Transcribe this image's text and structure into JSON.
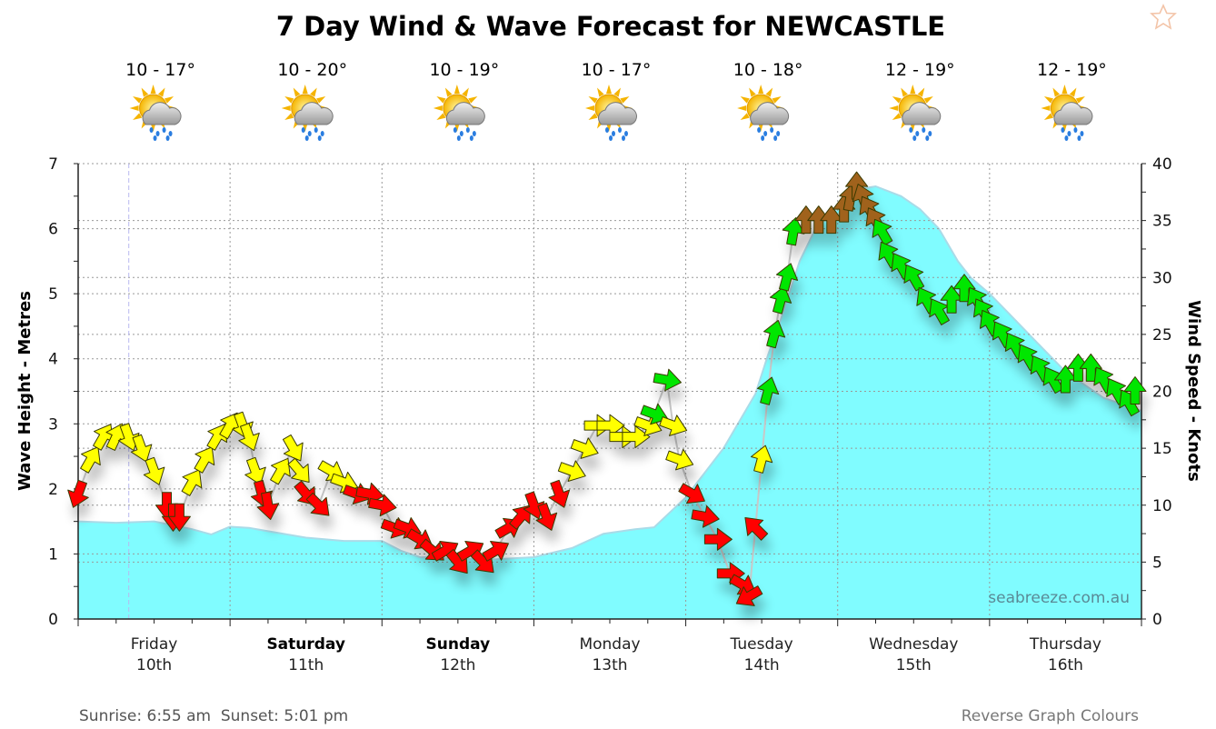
{
  "title": "7 Day Wind & Wave Forecast for NEWCASTLE",
  "days": [
    {
      "name": "Friday",
      "date": "10th",
      "temp": "10 - 17°",
      "bold": false,
      "icon": "sun-cloud-rain-icon"
    },
    {
      "name": "Saturday",
      "date": "11th",
      "temp": "10 - 20°",
      "bold": true,
      "icon": "sun-cloud-rain-icon"
    },
    {
      "name": "Sunday",
      "date": "12th",
      "temp": "10 - 19°",
      "bold": true,
      "icon": "sun-cloud-rain-icon"
    },
    {
      "name": "Monday",
      "date": "13th",
      "temp": "10 - 17°",
      "bold": false,
      "icon": "cloud-rain-icon"
    },
    {
      "name": "Tuesday",
      "date": "14th",
      "temp": "10 - 18°",
      "bold": false,
      "icon": "sun-cloud-rain-icon"
    },
    {
      "name": "Wednesday",
      "date": "15th",
      "temp": "12 - 19°",
      "bold": false,
      "icon": "sun-cloud-rain-icon"
    },
    {
      "name": "Thursday",
      "date": "16th",
      "temp": "12 - 19°",
      "bold": false,
      "icon": "sun-cloud-rain-icon"
    }
  ],
  "footer": {
    "sun_times": "Sunrise: 6:55 am  Sunset: 5:01 pm",
    "reverse_link": "Reverse Graph Colours",
    "watermark": "seabreeze.com.au"
  },
  "colors": {
    "wave_fill": "#80fcff",
    "wave_line": "#a9dbe8",
    "wind_light": "#ff0000",
    "wind_moderate": "#ffff00",
    "wind_strong": "#00e600",
    "wind_gale": "#a0621e"
  },
  "chart_data": {
    "type": "area",
    "title": "7 Day Wind & Wave Forecast for NEWCASTLE",
    "x_unit": "hours from Friday 10th 00:00",
    "xlim": [
      0,
      168
    ],
    "ylabel": "Wave Height - Metres",
    "ylim": [
      0,
      7
    ],
    "y_ticks": [
      0,
      1,
      2,
      3,
      4,
      5,
      6,
      7
    ],
    "y2label": "Wind Speed - Knots",
    "y2lim": [
      0,
      40
    ],
    "y2_ticks": [
      0,
      5,
      10,
      15,
      20,
      25,
      30,
      35,
      40
    ],
    "grid": true,
    "current_time_hour": 8,
    "wave_height": [
      [
        0,
        1.5
      ],
      [
        6,
        1.48
      ],
      [
        12,
        1.5
      ],
      [
        18,
        1.38
      ],
      [
        21,
        1.3
      ],
      [
        24,
        1.42
      ],
      [
        27,
        1.4
      ],
      [
        30,
        1.35
      ],
      [
        36,
        1.25
      ],
      [
        42,
        1.2
      ],
      [
        48,
        1.2
      ],
      [
        51,
        1.05
      ],
      [
        54,
        0.95
      ],
      [
        60,
        0.93
      ],
      [
        66,
        0.92
      ],
      [
        72,
        0.95
      ],
      [
        78,
        1.09
      ],
      [
        83,
        1.31
      ],
      [
        88,
        1.38
      ],
      [
        91,
        1.41
      ],
      [
        96,
        1.87
      ],
      [
        102,
        2.63
      ],
      [
        107,
        3.46
      ],
      [
        109,
        4.06
      ],
      [
        111,
        4.6
      ],
      [
        114,
        5.5
      ],
      [
        117,
        6.1
      ],
      [
        120,
        6.3
      ],
      [
        123,
        6.6
      ],
      [
        126,
        6.65
      ],
      [
        130,
        6.5
      ],
      [
        133,
        6.3
      ],
      [
        136,
        6.0
      ],
      [
        139,
        5.5
      ],
      [
        141,
        5.25
      ],
      [
        144,
        5.0
      ],
      [
        147,
        4.7
      ],
      [
        150,
        4.4
      ],
      [
        153,
        4.1
      ],
      [
        156,
        3.8
      ],
      [
        159,
        3.6
      ],
      [
        162,
        3.4
      ],
      [
        165,
        3.3
      ],
      [
        168,
        3.2
      ]
    ],
    "wind_series_fields": [
      "hour",
      "knots",
      "direction_deg",
      "color_key"
    ],
    "wind": [
      [
        0,
        11,
        200,
        "wind_light"
      ],
      [
        2,
        14,
        30,
        "wind_moderate"
      ],
      [
        4,
        16,
        30,
        "wind_moderate"
      ],
      [
        6,
        16,
        25,
        "wind_moderate"
      ],
      [
        8,
        16,
        160,
        "wind_moderate"
      ],
      [
        10,
        15,
        160,
        "wind_moderate"
      ],
      [
        12,
        13,
        160,
        "wind_moderate"
      ],
      [
        14,
        10,
        180,
        "wind_light"
      ],
      [
        15,
        9,
        180,
        "wind_light"
      ],
      [
        16,
        9,
        180,
        "wind_light"
      ],
      [
        18,
        12,
        30,
        "wind_moderate"
      ],
      [
        20,
        14,
        30,
        "wind_moderate"
      ],
      [
        22,
        16,
        30,
        "wind_moderate"
      ],
      [
        24,
        17,
        30,
        "wind_moderate"
      ],
      [
        26,
        17,
        160,
        "wind_moderate"
      ],
      [
        27,
        16,
        160,
        "wind_moderate"
      ],
      [
        28,
        13,
        160,
        "wind_moderate"
      ],
      [
        29,
        11,
        165,
        "wind_light"
      ],
      [
        30,
        10,
        170,
        "wind_light"
      ],
      [
        32,
        13,
        30,
        "wind_moderate"
      ],
      [
        34,
        15,
        150,
        "wind_moderate"
      ],
      [
        35,
        13,
        140,
        "wind_moderate"
      ],
      [
        36,
        11,
        140,
        "wind_light"
      ],
      [
        38,
        10,
        135,
        "wind_light"
      ],
      [
        40,
        13,
        120,
        "wind_moderate"
      ],
      [
        42,
        12,
        110,
        "wind_moderate"
      ],
      [
        44,
        11,
        110,
        "wind_light"
      ],
      [
        46,
        11,
        100,
        "wind_light"
      ],
      [
        48,
        10,
        100,
        "wind_light"
      ],
      [
        50,
        8,
        110,
        "wind_light"
      ],
      [
        52,
        8,
        110,
        "wind_light"
      ],
      [
        54,
        7,
        120,
        "wind_light"
      ],
      [
        56,
        6,
        130,
        "wind_light"
      ],
      [
        58,
        6,
        60,
        "wind_light"
      ],
      [
        60,
        5,
        140,
        "wind_light"
      ],
      [
        62,
        6,
        60,
        "wind_light"
      ],
      [
        64,
        5,
        135,
        "wind_light"
      ],
      [
        66,
        6,
        60,
        "wind_light"
      ],
      [
        68,
        8,
        60,
        "wind_light"
      ],
      [
        70,
        9,
        40,
        "wind_light"
      ],
      [
        72,
        10,
        160,
        "wind_light"
      ],
      [
        74,
        9,
        160,
        "wind_light"
      ],
      [
        76,
        11,
        160,
        "wind_light"
      ],
      [
        78,
        13,
        110,
        "wind_moderate"
      ],
      [
        80,
        15,
        110,
        "wind_moderate"
      ],
      [
        82,
        17,
        90,
        "wind_moderate"
      ],
      [
        84,
        17,
        90,
        "wind_moderate"
      ],
      [
        86,
        16,
        90,
        "wind_moderate"
      ],
      [
        88,
        16,
        90,
        "wind_moderate"
      ],
      [
        90,
        17,
        110,
        "wind_moderate"
      ],
      [
        91,
        18,
        110,
        "wind_strong"
      ],
      [
        93,
        21,
        100,
        "wind_strong"
      ],
      [
        94,
        17,
        110,
        "wind_moderate"
      ],
      [
        95,
        14,
        110,
        "wind_moderate"
      ],
      [
        97,
        11,
        120,
        "wind_light"
      ],
      [
        99,
        9,
        100,
        "wind_light"
      ],
      [
        101,
        7,
        90,
        "wind_light"
      ],
      [
        103,
        4,
        90,
        "wind_light"
      ],
      [
        105,
        3,
        120,
        "wind_light"
      ],
      [
        106,
        2,
        240,
        "wind_light"
      ],
      [
        107,
        8,
        315,
        "wind_light"
      ],
      [
        108,
        14,
        15,
        "wind_moderate"
      ],
      [
        109,
        20,
        15,
        "wind_strong"
      ],
      [
        110,
        25,
        15,
        "wind_strong"
      ],
      [
        111,
        28,
        15,
        "wind_strong"
      ],
      [
        112,
        30,
        15,
        "wind_strong"
      ],
      [
        113,
        34,
        10,
        "wind_strong"
      ],
      [
        115,
        35,
        0,
        "wind_gale"
      ],
      [
        117,
        35,
        0,
        "wind_gale"
      ],
      [
        119,
        35,
        0,
        "wind_gale"
      ],
      [
        121,
        36,
        0,
        "wind_gale"
      ],
      [
        122,
        37,
        10,
        "wind_gale"
      ],
      [
        123,
        38,
        0,
        "wind_gale"
      ],
      [
        124,
        37,
        340,
        "wind_gale"
      ],
      [
        125,
        36,
        330,
        "wind_gale"
      ],
      [
        126,
        35,
        330,
        "wind_gale"
      ],
      [
        127,
        34,
        330,
        "wind_strong"
      ],
      [
        128,
        32,
        330,
        "wind_strong"
      ],
      [
        130,
        31,
        330,
        "wind_strong"
      ],
      [
        132,
        30,
        330,
        "wind_strong"
      ],
      [
        134,
        28,
        330,
        "wind_strong"
      ],
      [
        136,
        27,
        330,
        "wind_strong"
      ],
      [
        138,
        28,
        0,
        "wind_strong"
      ],
      [
        140,
        29,
        0,
        "wind_strong"
      ],
      [
        142,
        28,
        330,
        "wind_strong"
      ],
      [
        143,
        27,
        330,
        "wind_strong"
      ],
      [
        144,
        26,
        330,
        "wind_strong"
      ],
      [
        146,
        25,
        330,
        "wind_strong"
      ],
      [
        148,
        24,
        330,
        "wind_strong"
      ],
      [
        150,
        23,
        330,
        "wind_strong"
      ],
      [
        152,
        22,
        330,
        "wind_strong"
      ],
      [
        154,
        21,
        330,
        "wind_strong"
      ],
      [
        156,
        21,
        0,
        "wind_strong"
      ],
      [
        158,
        22,
        0,
        "wind_strong"
      ],
      [
        160,
        22,
        0,
        "wind_strong"
      ],
      [
        162,
        21,
        330,
        "wind_strong"
      ],
      [
        164,
        20,
        330,
        "wind_strong"
      ],
      [
        166,
        19,
        330,
        "wind_strong"
      ],
      [
        167,
        20,
        0,
        "wind_strong"
      ]
    ]
  }
}
